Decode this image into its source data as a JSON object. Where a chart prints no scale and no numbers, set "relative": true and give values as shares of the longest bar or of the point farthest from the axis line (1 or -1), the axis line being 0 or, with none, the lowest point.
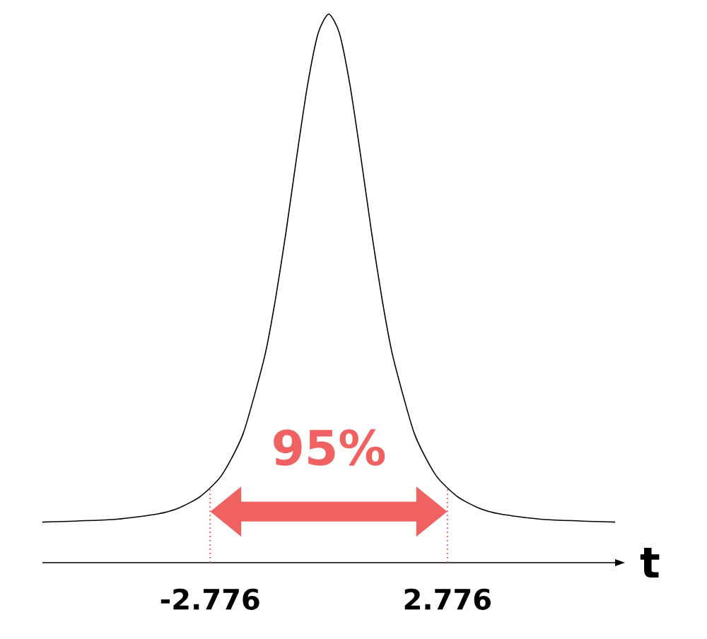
{
  "chart_data": {
    "type": "line",
    "relative": true,
    "xlabel": "t",
    "annotations": [
      "95%"
    ],
    "x": [
      -6.7,
      -5,
      -4,
      -3.5,
      -3,
      -2.5,
      -2,
      -1.5,
      -1.25,
      -1,
      -0.75,
      -0.5,
      -0.25,
      0,
      0.25,
      0.5,
      0.75,
      1,
      1.25,
      1.5,
      2,
      2.5,
      3,
      3.5,
      4,
      5,
      6.7
    ],
    "series": [
      {
        "color": "#000000",
        "values": [
          0.074,
          0.079,
          0.089,
          0.1,
          0.121,
          0.16,
          0.236,
          0.376,
          0.479,
          0.603,
          0.74,
          0.869,
          0.965,
          1.0,
          0.965,
          0.869,
          0.74,
          0.603,
          0.479,
          0.376,
          0.236,
          0.16,
          0.121,
          0.1,
          0.089,
          0.079,
          0.074
        ]
      }
    ],
    "xlim": [
      -6.7,
      6.7
    ],
    "xticks": [
      -2.776,
      2.776
    ],
    "tick_labels": "x",
    "ref_lines": [
      {
        "axis": "x",
        "value": -2.776,
        "color": "#f06262",
        "line_style": "dotted"
      },
      {
        "axis": "x",
        "value": 2.776,
        "color": "#f06262",
        "line_style": "dotted"
      }
    ]
  }
}
